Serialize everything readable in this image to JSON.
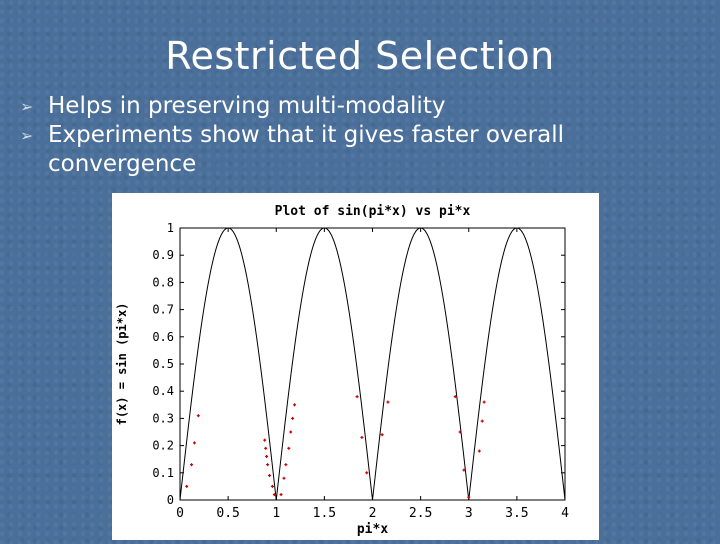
{
  "slide": {
    "title": "Restricted Selection",
    "bullets": [
      "Helps in preserving multi-modality",
      "Experiments show that it gives faster overall convergence"
    ],
    "bullet_icon": "arrow-bullet-icon"
  },
  "colors": {
    "background": "#4a6f9a",
    "curve": "#000000",
    "points": "#cc0000",
    "text": "#ffffff"
  },
  "chart_data": {
    "type": "line",
    "title": "Plot of sin(pi*x) vs pi*x",
    "xlabel": "pi*x",
    "ylabel": "f(x) = sin (pi*x)",
    "xlim": [
      0,
      4
    ],
    "ylim": [
      0,
      1
    ],
    "xticks": [
      "0",
      "0.5",
      "1",
      "1.5",
      "2",
      "2.5",
      "3",
      "3.5",
      "4"
    ],
    "yticks": [
      "0",
      "0.1",
      "0.2",
      "0.3",
      "0.4",
      "0.5",
      "0.6",
      "0.7",
      "0.8",
      "0.9",
      "1"
    ],
    "series": [
      {
        "function": "|sin(pi*x)| (curve)"
      }
    ],
    "scatter_points": [
      {
        "x": 0.07,
        "y": 0.05
      },
      {
        "x": 0.12,
        "y": 0.13
      },
      {
        "x": 0.15,
        "y": 0.21
      },
      {
        "x": 0.19,
        "y": 0.31
      },
      {
        "x": 0.88,
        "y": 0.22
      },
      {
        "x": 0.89,
        "y": 0.19
      },
      {
        "x": 0.9,
        "y": 0.16
      },
      {
        "x": 0.91,
        "y": 0.13
      },
      {
        "x": 0.93,
        "y": 0.09
      },
      {
        "x": 0.96,
        "y": 0.05
      },
      {
        "x": 0.98,
        "y": 0.02
      },
      {
        "x": 1.05,
        "y": 0.02
      },
      {
        "x": 1.08,
        "y": 0.08
      },
      {
        "x": 1.1,
        "y": 0.13
      },
      {
        "x": 1.13,
        "y": 0.19
      },
      {
        "x": 1.15,
        "y": 0.25
      },
      {
        "x": 1.17,
        "y": 0.3
      },
      {
        "x": 1.19,
        "y": 0.35
      },
      {
        "x": 1.84,
        "y": 0.38
      },
      {
        "x": 1.89,
        "y": 0.23
      },
      {
        "x": 1.94,
        "y": 0.1
      },
      {
        "x": 2.1,
        "y": 0.24
      },
      {
        "x": 2.16,
        "y": 0.36
      },
      {
        "x": 2.86,
        "y": 0.38
      },
      {
        "x": 2.91,
        "y": 0.25
      },
      {
        "x": 2.95,
        "y": 0.11
      },
      {
        "x": 3.0,
        "y": 0.01
      },
      {
        "x": 3.11,
        "y": 0.18
      },
      {
        "x": 3.14,
        "y": 0.29
      },
      {
        "x": 3.16,
        "y": 0.36
      }
    ]
  }
}
